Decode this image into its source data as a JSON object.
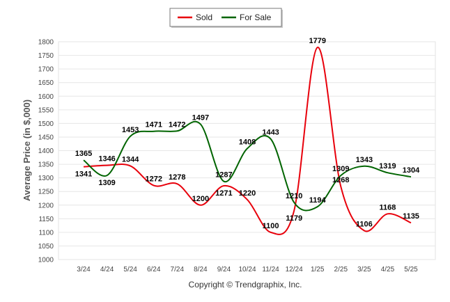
{
  "chart_data": {
    "type": "line",
    "categories": [
      "3/24",
      "4/24",
      "5/24",
      "6/24",
      "7/24",
      "8/24",
      "9/24",
      "10/24",
      "11/24",
      "12/24",
      "1/25",
      "2/25",
      "3/25",
      "4/25",
      "5/25"
    ],
    "series": [
      {
        "name": "Sold",
        "color": "#e8000b",
        "values": [
          1341,
          1346,
          1344,
          1272,
          1278,
          1200,
          1271,
          1220,
          1100,
          1179,
          1779,
          1268,
          1106,
          1168,
          1135
        ]
      },
      {
        "name": "For Sale",
        "color": "#006400",
        "values": [
          1365,
          1309,
          1453,
          1471,
          1472,
          1497,
          1287,
          1408,
          1443,
          1210,
          1194,
          1309,
          1343,
          1319,
          1304
        ]
      }
    ],
    "ylabel": "Average Price (in $,000)",
    "xlabel": "",
    "ylim": [
      1000,
      1800
    ],
    "yticks": [
      1000,
      1050,
      1100,
      1150,
      1200,
      1250,
      1300,
      1350,
      1400,
      1450,
      1500,
      1550,
      1600,
      1650,
      1700,
      1750,
      1800
    ],
    "grid": true,
    "legend_position": "top-center"
  },
  "footer": {
    "copyright": "Copyright © Trendgraphix, Inc."
  }
}
